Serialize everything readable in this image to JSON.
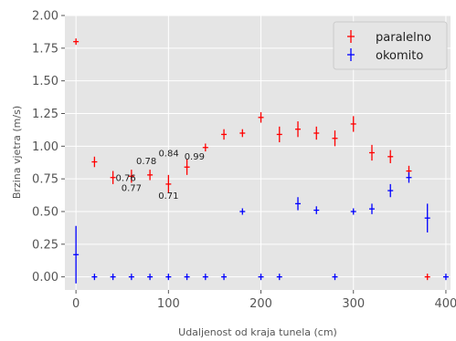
{
  "chart_data": {
    "type": "scatter",
    "xlabel": "Udaljenost od kraja tunela (cm)",
    "ylabel": "Brzina vjetra (m/s)",
    "xlim": [
      -12,
      405
    ],
    "ylim": [
      -0.1,
      2.0
    ],
    "xticks": [
      0,
      100,
      200,
      300,
      400
    ],
    "xtick_labels": [
      "0",
      "100",
      "200",
      "300",
      "400"
    ],
    "yticks": [
      0.0,
      0.25,
      0.5,
      0.75,
      1.0,
      1.25,
      1.5,
      1.75,
      2.0
    ],
    "ytick_labels": [
      "0.00",
      "0.25",
      "0.50",
      "0.75",
      "1.00",
      "1.25",
      "1.50",
      "1.75",
      "2.00"
    ],
    "grid": true,
    "legend_position": "top-right",
    "series": [
      {
        "name": "paralelno",
        "color": "#ff0000",
        "x": [
          0,
          20,
          40,
          60,
          80,
          100,
          120,
          140,
          160,
          180,
          200,
          220,
          240,
          260,
          280,
          300,
          320,
          340,
          360,
          380
        ],
        "y": [
          1.8,
          0.88,
          0.76,
          0.77,
          0.78,
          0.71,
          0.84,
          0.99,
          1.09,
          1.1,
          1.22,
          1.09,
          1.13,
          1.1,
          1.06,
          1.17,
          0.95,
          0.92,
          0.81,
          0.0
        ],
        "yerr": [
          0.02,
          0.04,
          0.05,
          0.05,
          0.04,
          0.07,
          0.06,
          0.03,
          0.04,
          0.03,
          0.04,
          0.06,
          0.06,
          0.05,
          0.06,
          0.06,
          0.06,
          0.05,
          0.04,
          0.0
        ]
      },
      {
        "name": "okomito",
        "color": "#0000ff",
        "x": [
          0,
          20,
          40,
          60,
          80,
          100,
          120,
          140,
          160,
          180,
          200,
          220,
          240,
          260,
          280,
          300,
          320,
          340,
          360,
          380,
          400
        ],
        "y": [
          0.17,
          0.0,
          0.0,
          0.0,
          0.0,
          0.0,
          0.0,
          0.0,
          0.0,
          0.5,
          0.0,
          0.0,
          0.56,
          0.51,
          0.0,
          0.5,
          0.52,
          0.66,
          0.76,
          0.45,
          0.0
        ],
        "yerr": [
          0.22,
          0.0,
          0.0,
          0.0,
          0.0,
          0.0,
          0.0,
          0.0,
          0.0,
          0.01,
          0.0,
          0.0,
          0.05,
          0.03,
          0.0,
          0.01,
          0.04,
          0.05,
          0.04,
          0.11,
          0.0
        ]
      }
    ],
    "annotations": [
      {
        "text": "0.76",
        "x": 40,
        "y": 0.76
      },
      {
        "text": "0.77",
        "x": 60,
        "y": 0.77
      },
      {
        "text": "0.78",
        "x": 80,
        "y": 0.78
      },
      {
        "text": "0.71",
        "x": 100,
        "y": 0.71
      },
      {
        "text": "0.84",
        "x": 120,
        "y": 0.84
      },
      {
        "text": "0.99",
        "x": 140,
        "y": 0.99
      }
    ]
  }
}
